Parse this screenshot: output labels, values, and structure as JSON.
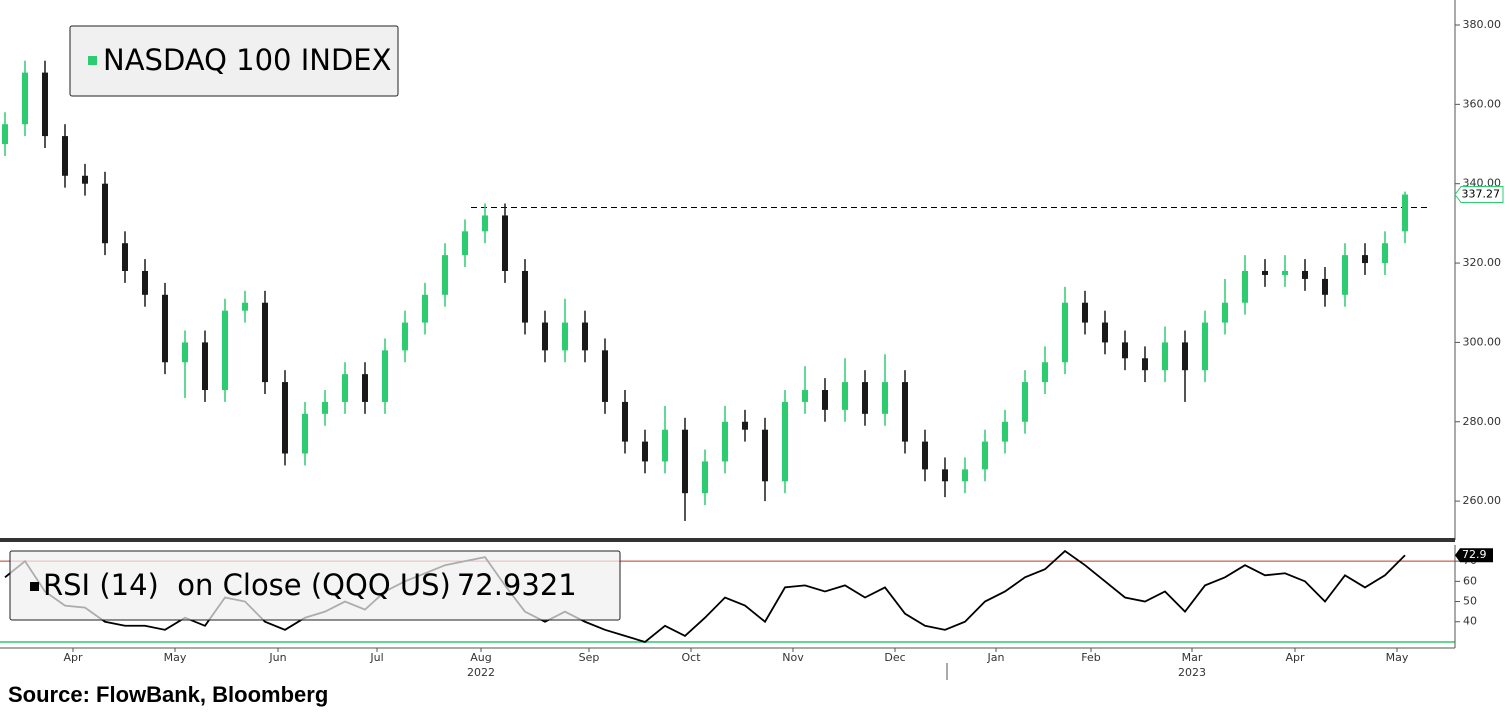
{
  "chart_data": [
    {
      "type": "candlestick",
      "xlim": [
        -0.25,
        72.5
      ],
      "ylim": [
        250.2,
        386.3
      ],
      "yticks": [
        {
          "value": 260,
          "label": "260.00"
        },
        {
          "value": 280,
          "label": "280.00"
        },
        {
          "value": 300,
          "label": "300.00"
        },
        {
          "value": 320,
          "label": "320.00"
        },
        {
          "value": 340,
          "label": "340.00"
        },
        {
          "value": 360,
          "label": "360.00"
        },
        {
          "value": 380,
          "label": "380.00"
        }
      ],
      "resistance": 334,
      "series": [
        {
          "name": "NASDAQ 100 INDEX",
          "color": "#2ecc71",
          "down_color": "#1a1a1a",
          "open": [
            350,
            355,
            368,
            352,
            342,
            340,
            325,
            318,
            312,
            295,
            300,
            288,
            308,
            310,
            290,
            272,
            282,
            285,
            292,
            285,
            298,
            305,
            312,
            322,
            328,
            332,
            318,
            305,
            298,
            305,
            298,
            285,
            275,
            270,
            278,
            262,
            270,
            280,
            278,
            265,
            285,
            288,
            283,
            290,
            282,
            290,
            275,
            268,
            265,
            268,
            275,
            280,
            290,
            295,
            310,
            305,
            300,
            296,
            293,
            300,
            293,
            305,
            310,
            318,
            317,
            318,
            316,
            312,
            322,
            320,
            328
          ],
          "high": [
            358,
            371,
            371,
            355,
            345,
            343,
            328,
            321,
            315,
            303,
            303,
            311,
            313,
            313,
            293,
            285,
            288,
            295,
            295,
            301,
            308,
            315,
            325,
            331,
            335,
            335,
            321,
            308,
            311,
            308,
            301,
            288,
            278,
            284,
            281,
            273,
            284,
            283,
            281,
            288,
            294,
            291,
            296,
            293,
            297,
            293,
            278,
            271,
            271,
            278,
            283,
            293,
            299,
            314,
            313,
            308,
            303,
            299,
            304,
            303,
            308,
            316,
            322,
            321,
            322,
            321,
            319,
            325,
            325,
            328,
            338
          ],
          "low": [
            347,
            352,
            349,
            339,
            337,
            322,
            315,
            309,
            292,
            286,
            285,
            285,
            305,
            287,
            269,
            269,
            279,
            282,
            282,
            282,
            295,
            302,
            309,
            319,
            325,
            315,
            302,
            295,
            295,
            295,
            282,
            272,
            267,
            267,
            255,
            259,
            267,
            275,
            260,
            262,
            282,
            280,
            280,
            279,
            279,
            272,
            265,
            261,
            262,
            265,
            272,
            277,
            287,
            292,
            302,
            297,
            293,
            290,
            290,
            285,
            290,
            302,
            307,
            314,
            314,
            313,
            309,
            309,
            317,
            317,
            325
          ],
          "close": [
            355,
            368,
            352,
            342,
            340,
            325,
            318,
            312,
            295,
            300,
            288,
            308,
            310,
            290,
            272,
            282,
            285,
            292,
            285,
            298,
            305,
            312,
            322,
            328,
            332,
            318,
            305,
            298,
            305,
            298,
            285,
            275,
            270,
            278,
            262,
            270,
            280,
            278,
            265,
            285,
            288,
            283,
            290,
            282,
            290,
            275,
            268,
            265,
            268,
            275,
            280,
            290,
            295,
            310,
            305,
            300,
            296,
            293,
            300,
            293,
            305,
            310,
            318,
            317,
            318,
            316,
            312,
            322,
            320,
            325,
            337.27
          ]
        }
      ]
    },
    {
      "type": "line",
      "xlim": [
        -0.25,
        72.5
      ],
      "ylim": [
        27,
        78
      ],
      "yticks": [
        40,
        50,
        60,
        70
      ],
      "overbought": 70,
      "overbought_color": "#c0392b",
      "oversold": 30,
      "oversold_color": "#2ecc71",
      "xticks": [
        {
          "value": 3.4,
          "label": "Apr"
        },
        {
          "value": 8.5,
          "label": "May"
        },
        {
          "value": 13.65,
          "label": "Jun"
        },
        {
          "value": 18.6,
          "label": "Jul"
        },
        {
          "value": 23.8,
          "label": "Aug"
        },
        {
          "value": 29.2,
          "label": "Sep"
        },
        {
          "value": 34.3,
          "label": "Oct"
        },
        {
          "value": 39.4,
          "label": "Nov"
        },
        {
          "value": 44.5,
          "label": "Dec"
        },
        {
          "value": 49.55,
          "label": "Jan"
        },
        {
          "value": 54.3,
          "label": "Feb"
        },
        {
          "value": 59.35,
          "label": "Mar"
        },
        {
          "value": 64.5,
          "label": "Apr"
        },
        {
          "value": 69.6,
          "label": "May"
        }
      ],
      "year_labels": [
        {
          "value": 23.8,
          "label": "2022"
        },
        {
          "value": 59.35,
          "label": "2023"
        }
      ],
      "series": [
        {
          "name": "RSI (14)  on Close (QQQ US)",
          "color": "#000000",
          "values": [
            62,
            70,
            55,
            48,
            47,
            40,
            38,
            38,
            36,
            42,
            38,
            52,
            50,
            40,
            36,
            42,
            45,
            50,
            46,
            55,
            60,
            64,
            68,
            70,
            72,
            58,
            45,
            40,
            45,
            40,
            36,
            33,
            30,
            38,
            33,
            42,
            52,
            48,
            40,
            57,
            58,
            55,
            58,
            52,
            57,
            44,
            38,
            36,
            40,
            50,
            55,
            62,
            66,
            75,
            68,
            60,
            52,
            50,
            55,
            45,
            58,
            62,
            68,
            63,
            64,
            60,
            50,
            63,
            57,
            63,
            72.9321
          ],
          "tag_label": "72.9"
        }
      ]
    }
  ],
  "source": "Source: FlowBank, Bloomberg"
}
